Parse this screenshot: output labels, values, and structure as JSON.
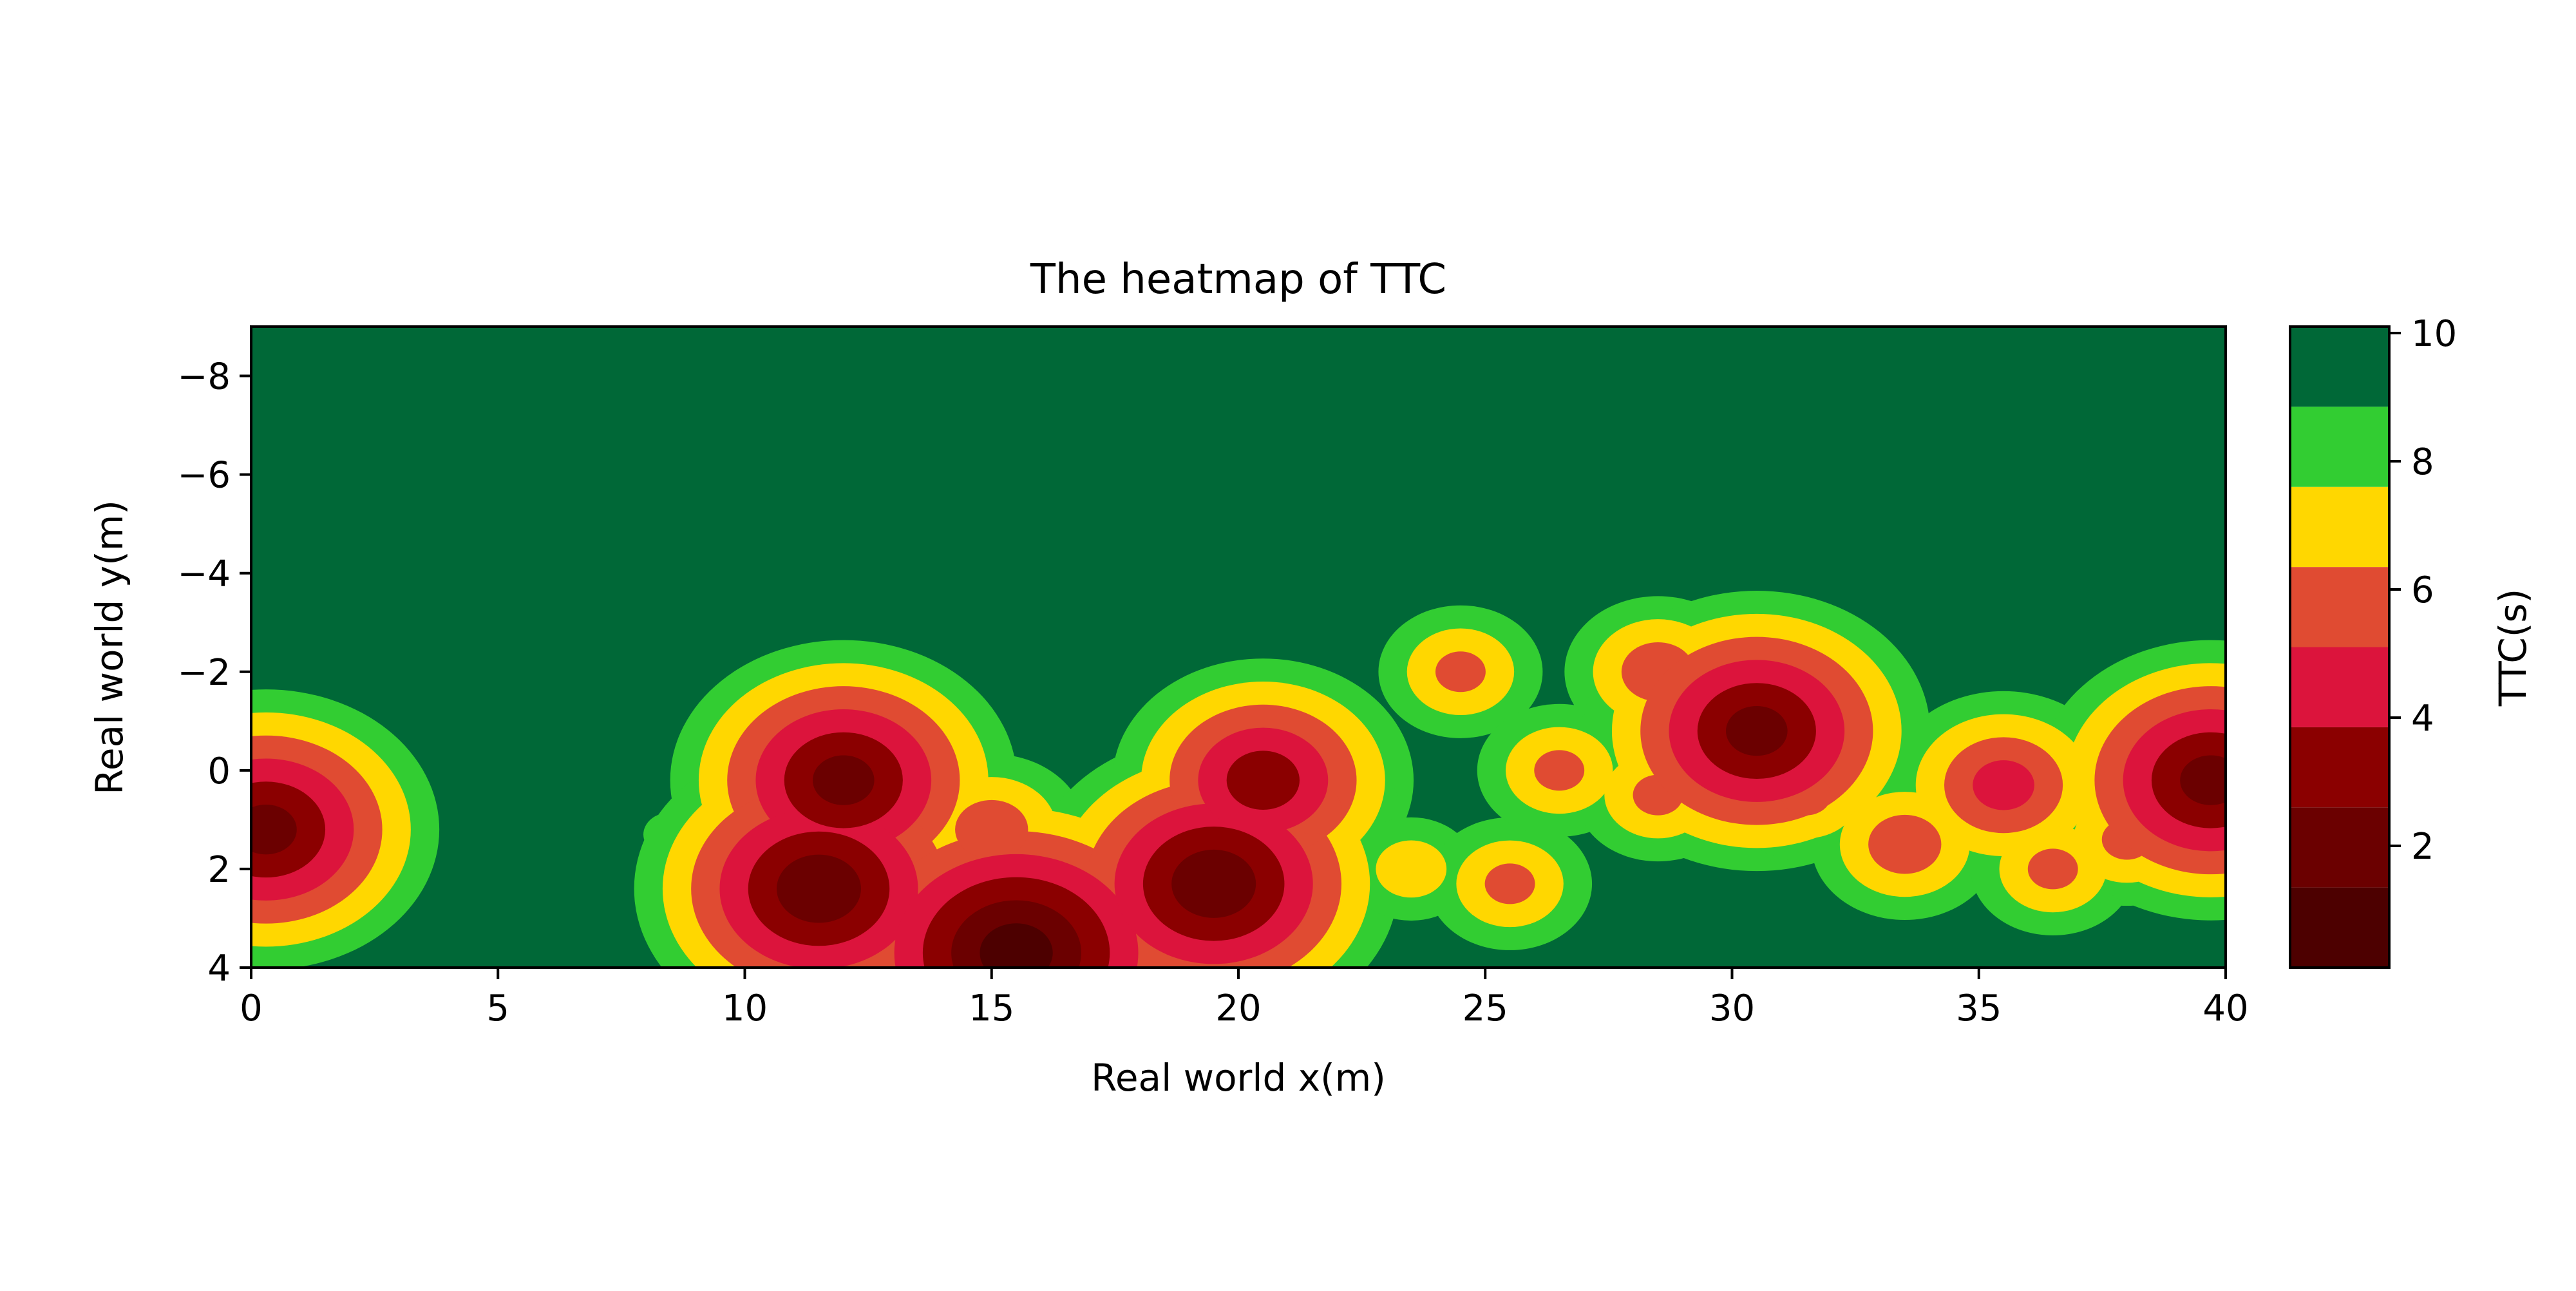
{
  "chart_data": {
    "type": "heatmap",
    "subtype": "filled-contour",
    "title": "The heatmap of TTC",
    "xlabel": "Real world x(m)",
    "ylabel": "Real world y(m)",
    "xlim": [
      0,
      40
    ],
    "ylim": [
      4,
      -9
    ],
    "y_axis_inverted": true,
    "x_ticks": [
      0,
      5,
      10,
      15,
      20,
      25,
      30,
      35,
      40
    ],
    "y_ticks": [
      -8,
      -6,
      -4,
      -2,
      0,
      2,
      4
    ],
    "x_tick_labels": [
      "0",
      "5",
      "10",
      "15",
      "20",
      "25",
      "30",
      "35",
      "40"
    ],
    "y_tick_labels": [
      "−8",
      "−6",
      "−4",
      "−2",
      "0",
      "2",
      "4"
    ],
    "grid": false,
    "colorbar": {
      "label": "TTC(s)",
      "range": [
        0,
        10
      ],
      "ticks": [
        2,
        4,
        6,
        8,
        10
      ],
      "tick_labels": [
        "2",
        "4",
        "6",
        "8",
        "10"
      ],
      "level_boundaries": [
        0.1,
        1.35,
        2.6,
        3.85,
        5.1,
        6.35,
        7.6,
        8.85,
        10.1
      ],
      "level_colors": [
        "#4d0000",
        "#6b0000",
        "#8b0000",
        "#dc143c",
        "#e04b32",
        "#ffd700",
        "#32cd32",
        "#006837"
      ]
    },
    "background_ttc": 10,
    "hotspots": [
      {
        "x": 0.3,
        "y": 1.2,
        "ttc_min": 2.0
      },
      {
        "x": 8.5,
        "y": 1.3,
        "ttc_min": 8.4
      },
      {
        "x": 12.0,
        "y": 0.2,
        "ttc_min": 2.0
      },
      {
        "x": 11.5,
        "y": 2.4,
        "ttc_min": 1.5
      },
      {
        "x": 15.5,
        "y": 3.7,
        "ttc_min": 0.5
      },
      {
        "x": 15.0,
        "y": 1.2,
        "ttc_min": 5.5
      },
      {
        "x": 17.5,
        "y": 2.4,
        "ttc_min": 6.0
      },
      {
        "x": 19.5,
        "y": 2.3,
        "ttc_min": 1.5
      },
      {
        "x": 20.5,
        "y": 0.2,
        "ttc_min": 3.0
      },
      {
        "x": 21.5,
        "y": 0.8,
        "ttc_min": 5.8
      },
      {
        "x": 23.5,
        "y": 2.0,
        "ttc_min": 6.8
      },
      {
        "x": 24.5,
        "y": -2.0,
        "ttc_min": 6.0
      },
      {
        "x": 25.5,
        "y": 2.3,
        "ttc_min": 6.0
      },
      {
        "x": 26.5,
        "y": 0.0,
        "ttc_min": 6.0
      },
      {
        "x": 28.5,
        "y": -2.0,
        "ttc_min": 5.5
      },
      {
        "x": 28.5,
        "y": 0.5,
        "ttc_min": 6.0
      },
      {
        "x": 30.5,
        "y": -0.8,
        "ttc_min": 2.0
      },
      {
        "x": 31.5,
        "y": 0.5,
        "ttc_min": 6.0
      },
      {
        "x": 33.5,
        "y": 1.5,
        "ttc_min": 5.5
      },
      {
        "x": 35.5,
        "y": 0.3,
        "ttc_min": 4.5
      },
      {
        "x": 36.5,
        "y": 2.0,
        "ttc_min": 6.0
      },
      {
        "x": 38.0,
        "y": 1.4,
        "ttc_min": 6.0
      },
      {
        "x": 39.7,
        "y": 0.2,
        "ttc_min": 2.0
      }
    ]
  }
}
